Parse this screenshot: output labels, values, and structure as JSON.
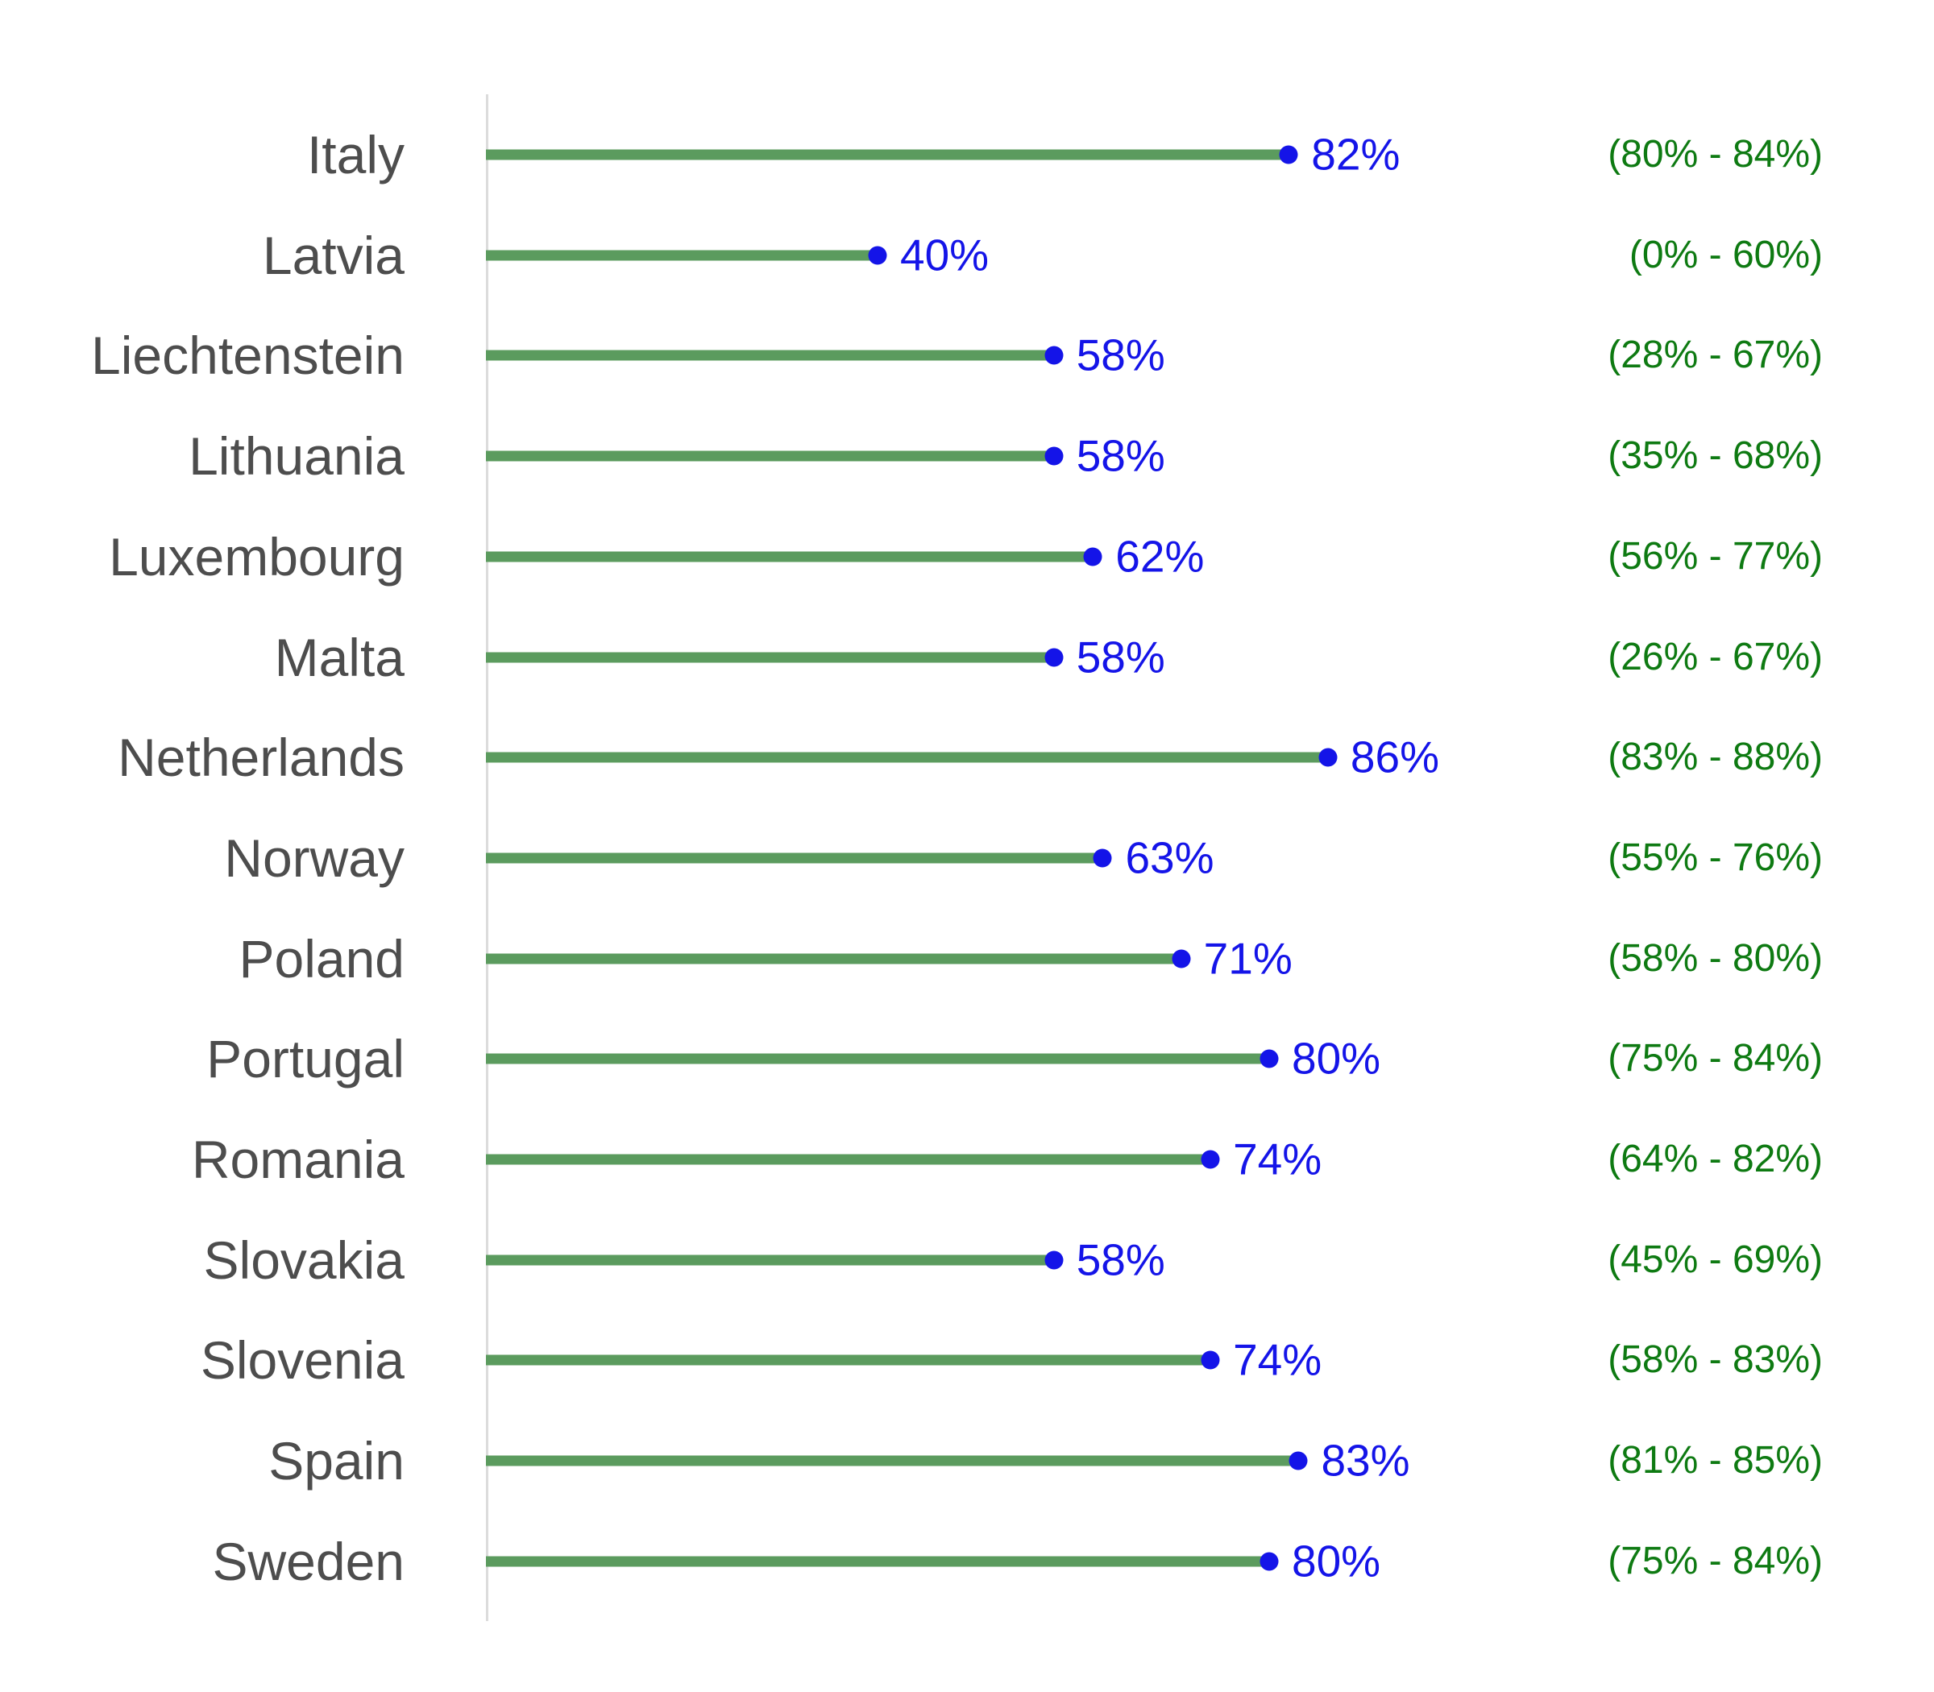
{
  "chart_data": {
    "type": "bar",
    "subtype": "lollipop",
    "orientation": "horizontal",
    "title": "",
    "xlabel": "",
    "ylabel": "",
    "xlim": [
      0,
      100
    ],
    "unit": "%",
    "grid": false,
    "legend": null,
    "colors": {
      "bar": "#5b9b5e",
      "dot": "#1414e8",
      "value_label": "#1414e8",
      "interval_label": "#0e7a12",
      "country_label": "#4d4d4d",
      "axis_line": "#dcdcdc"
    },
    "categories": [
      "Italy",
      "Latvia",
      "Liechtenstein",
      "Lithuania",
      "Luxembourg",
      "Malta",
      "Netherlands",
      "Norway",
      "Poland",
      "Portugal",
      "Romania",
      "Slovakia",
      "Slovenia",
      "Spain",
      "Sweden"
    ],
    "series": [
      {
        "name": "point_estimate",
        "values": [
          82,
          40,
          58,
          58,
          62,
          58,
          86,
          63,
          71,
          80,
          74,
          58,
          74,
          83,
          80
        ]
      },
      {
        "name": "ci_low",
        "values": [
          80,
          0,
          28,
          35,
          56,
          26,
          83,
          55,
          58,
          75,
          64,
          45,
          58,
          81,
          75
        ]
      },
      {
        "name": "ci_high",
        "values": [
          84,
          60,
          67,
          68,
          77,
          67,
          88,
          76,
          80,
          84,
          82,
          69,
          83,
          85,
          84
        ]
      }
    ],
    "rows": [
      {
        "country": "Italy",
        "value": 82,
        "value_label": "82%",
        "ci_low": 80,
        "ci_high": 84,
        "interval_label": "(80% - 84%)"
      },
      {
        "country": "Latvia",
        "value": 40,
        "value_label": "40%",
        "ci_low": 0,
        "ci_high": 60,
        "interval_label": "(0% - 60%)"
      },
      {
        "country": "Liechtenstein",
        "value": 58,
        "value_label": "58%",
        "ci_low": 28,
        "ci_high": 67,
        "interval_label": "(28% - 67%)"
      },
      {
        "country": "Lithuania",
        "value": 58,
        "value_label": "58%",
        "ci_low": 35,
        "ci_high": 68,
        "interval_label": "(35% - 68%)"
      },
      {
        "country": "Luxembourg",
        "value": 62,
        "value_label": "62%",
        "ci_low": 56,
        "ci_high": 77,
        "interval_label": "(56% - 77%)"
      },
      {
        "country": "Malta",
        "value": 58,
        "value_label": "58%",
        "ci_low": 26,
        "ci_high": 67,
        "interval_label": "(26% - 67%)"
      },
      {
        "country": "Netherlands",
        "value": 86,
        "value_label": "86%",
        "ci_low": 83,
        "ci_high": 88,
        "interval_label": "(83% - 88%)"
      },
      {
        "country": "Norway",
        "value": 63,
        "value_label": "63%",
        "ci_low": 55,
        "ci_high": 76,
        "interval_label": "(55% - 76%)"
      },
      {
        "country": "Poland",
        "value": 71,
        "value_label": "71%",
        "ci_low": 58,
        "ci_high": 80,
        "interval_label": "(58% - 80%)"
      },
      {
        "country": "Portugal",
        "value": 80,
        "value_label": "80%",
        "ci_low": 75,
        "ci_high": 84,
        "interval_label": "(75% - 84%)"
      },
      {
        "country": "Romania",
        "value": 74,
        "value_label": "74%",
        "ci_low": 64,
        "ci_high": 82,
        "interval_label": "(64% - 82%)"
      },
      {
        "country": "Slovakia",
        "value": 58,
        "value_label": "58%",
        "ci_low": 45,
        "ci_high": 69,
        "interval_label": "(45% - 69%)"
      },
      {
        "country": "Slovenia",
        "value": 74,
        "value_label": "74%",
        "ci_low": 58,
        "ci_high": 83,
        "interval_label": "(58% - 83%)"
      },
      {
        "country": "Spain",
        "value": 83,
        "value_label": "83%",
        "ci_low": 81,
        "ci_high": 85,
        "interval_label": "(81% - 85%)"
      },
      {
        "country": "Sweden",
        "value": 80,
        "value_label": "80%",
        "ci_low": 75,
        "ci_high": 84,
        "interval_label": "(75% - 84%)"
      }
    ]
  }
}
